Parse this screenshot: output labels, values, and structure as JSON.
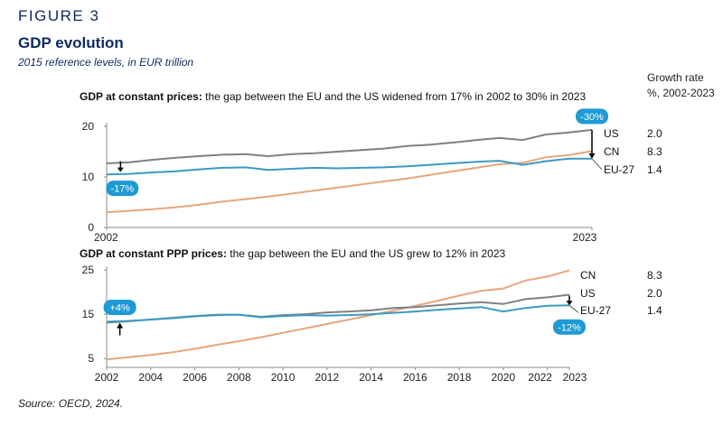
{
  "figure": {
    "label": "FIGURE 3",
    "title": "GDP evolution",
    "subtitle": "2015 reference levels, in EUR trillion"
  },
  "growth_header": {
    "line1": "Growth rate",
    "line2": "%, 2002-2023"
  },
  "source": "Source: OECD, 2024.",
  "colors": {
    "US": "#808080",
    "CN": "#e8a57c",
    "EU-27": "#3a9ac4",
    "badge": "#1e9ad4",
    "axis": "#888888"
  },
  "chart_data": [
    {
      "type": "line",
      "title_bold": "GDP at constant prices:",
      "title_rest": " the gap between the EU and the US widened from 17% in 2002 to 30% in 2023",
      "x": [
        2002,
        2003,
        2004,
        2005,
        2006,
        2007,
        2008,
        2009,
        2010,
        2011,
        2012,
        2013,
        2014,
        2015,
        2016,
        2017,
        2018,
        2019,
        2020,
        2021,
        2022,
        2023
      ],
      "xticks": [
        "2002",
        "2023"
      ],
      "ylim": [
        0,
        20
      ],
      "yticks": [
        "0",
        "10",
        "20"
      ],
      "series": [
        {
          "name": "US",
          "growth": "2.0",
          "values": [
            12.7,
            12.9,
            13.4,
            13.8,
            14.1,
            14.4,
            14.5,
            14.1,
            14.5,
            14.7,
            15.0,
            15.3,
            15.6,
            16.1,
            16.4,
            16.8,
            17.3,
            17.7,
            17.3,
            18.4,
            18.8,
            19.3
          ]
        },
        {
          "name": "CN",
          "growth": "8.3",
          "values": [
            3.0,
            3.3,
            3.6,
            4.0,
            4.5,
            5.1,
            5.6,
            6.1,
            6.7,
            7.3,
            7.9,
            8.5,
            9.1,
            9.7,
            10.4,
            11.1,
            11.8,
            12.5,
            12.8,
            13.9,
            14.3,
            15.1
          ]
        },
        {
          "name": "EU-27",
          "growth": "1.4",
          "values": [
            10.5,
            10.6,
            10.9,
            11.1,
            11.5,
            11.8,
            11.9,
            11.4,
            11.6,
            11.8,
            11.7,
            11.8,
            11.9,
            12.1,
            12.4,
            12.7,
            13.0,
            13.2,
            12.4,
            13.1,
            13.6,
            13.6
          ]
        }
      ],
      "annotations": [
        {
          "text": "-17%",
          "x": 2002.6
        },
        {
          "text": "-30%",
          "x": 2023
        }
      ]
    },
    {
      "type": "line",
      "title_bold": "GDP at constant PPP prices:",
      "title_rest": " the gap between the EU and the US grew to 12% in 2023",
      "x": [
        2002,
        2003,
        2004,
        2005,
        2006,
        2007,
        2008,
        2009,
        2010,
        2011,
        2012,
        2013,
        2014,
        2015,
        2016,
        2017,
        2018,
        2019,
        2020,
        2021,
        2022,
        2023
      ],
      "xticks": [
        "2002",
        "2004",
        "2006",
        "2008",
        "2010",
        "2012",
        "2014",
        "2016",
        "2018",
        "2020",
        "2022",
        "2023"
      ],
      "ylim": [
        3,
        25
      ],
      "yticks": [
        "5",
        "15",
        "25"
      ],
      "series": [
        {
          "name": "CN",
          "growth": "8.3",
          "values": [
            4.8,
            5.3,
            5.8,
            6.4,
            7.2,
            8.1,
            8.9,
            9.8,
            10.8,
            11.8,
            12.8,
            13.8,
            14.8,
            15.8,
            16.9,
            18.0,
            19.2,
            20.3,
            20.8,
            22.6,
            23.5,
            24.9
          ]
        },
        {
          "name": "US",
          "growth": "2.0",
          "values": [
            13.1,
            13.4,
            13.8,
            14.2,
            14.6,
            14.9,
            14.9,
            14.4,
            14.8,
            15.0,
            15.4,
            15.6,
            15.9,
            16.4,
            16.6,
            17.0,
            17.4,
            17.7,
            17.3,
            18.4,
            18.8,
            19.4
          ]
        },
        {
          "name": "EU-27",
          "growth": "1.4",
          "values": [
            13.3,
            13.5,
            13.8,
            14.1,
            14.5,
            14.8,
            14.9,
            14.3,
            14.6,
            14.8,
            14.7,
            14.8,
            15.0,
            15.3,
            15.6,
            16.0,
            16.3,
            16.6,
            15.6,
            16.4,
            16.9,
            17.0
          ]
        }
      ],
      "annotations": [
        {
          "text": "+4%",
          "x": 2002.6
        },
        {
          "text": "-12%",
          "x": 2023
        }
      ]
    }
  ]
}
